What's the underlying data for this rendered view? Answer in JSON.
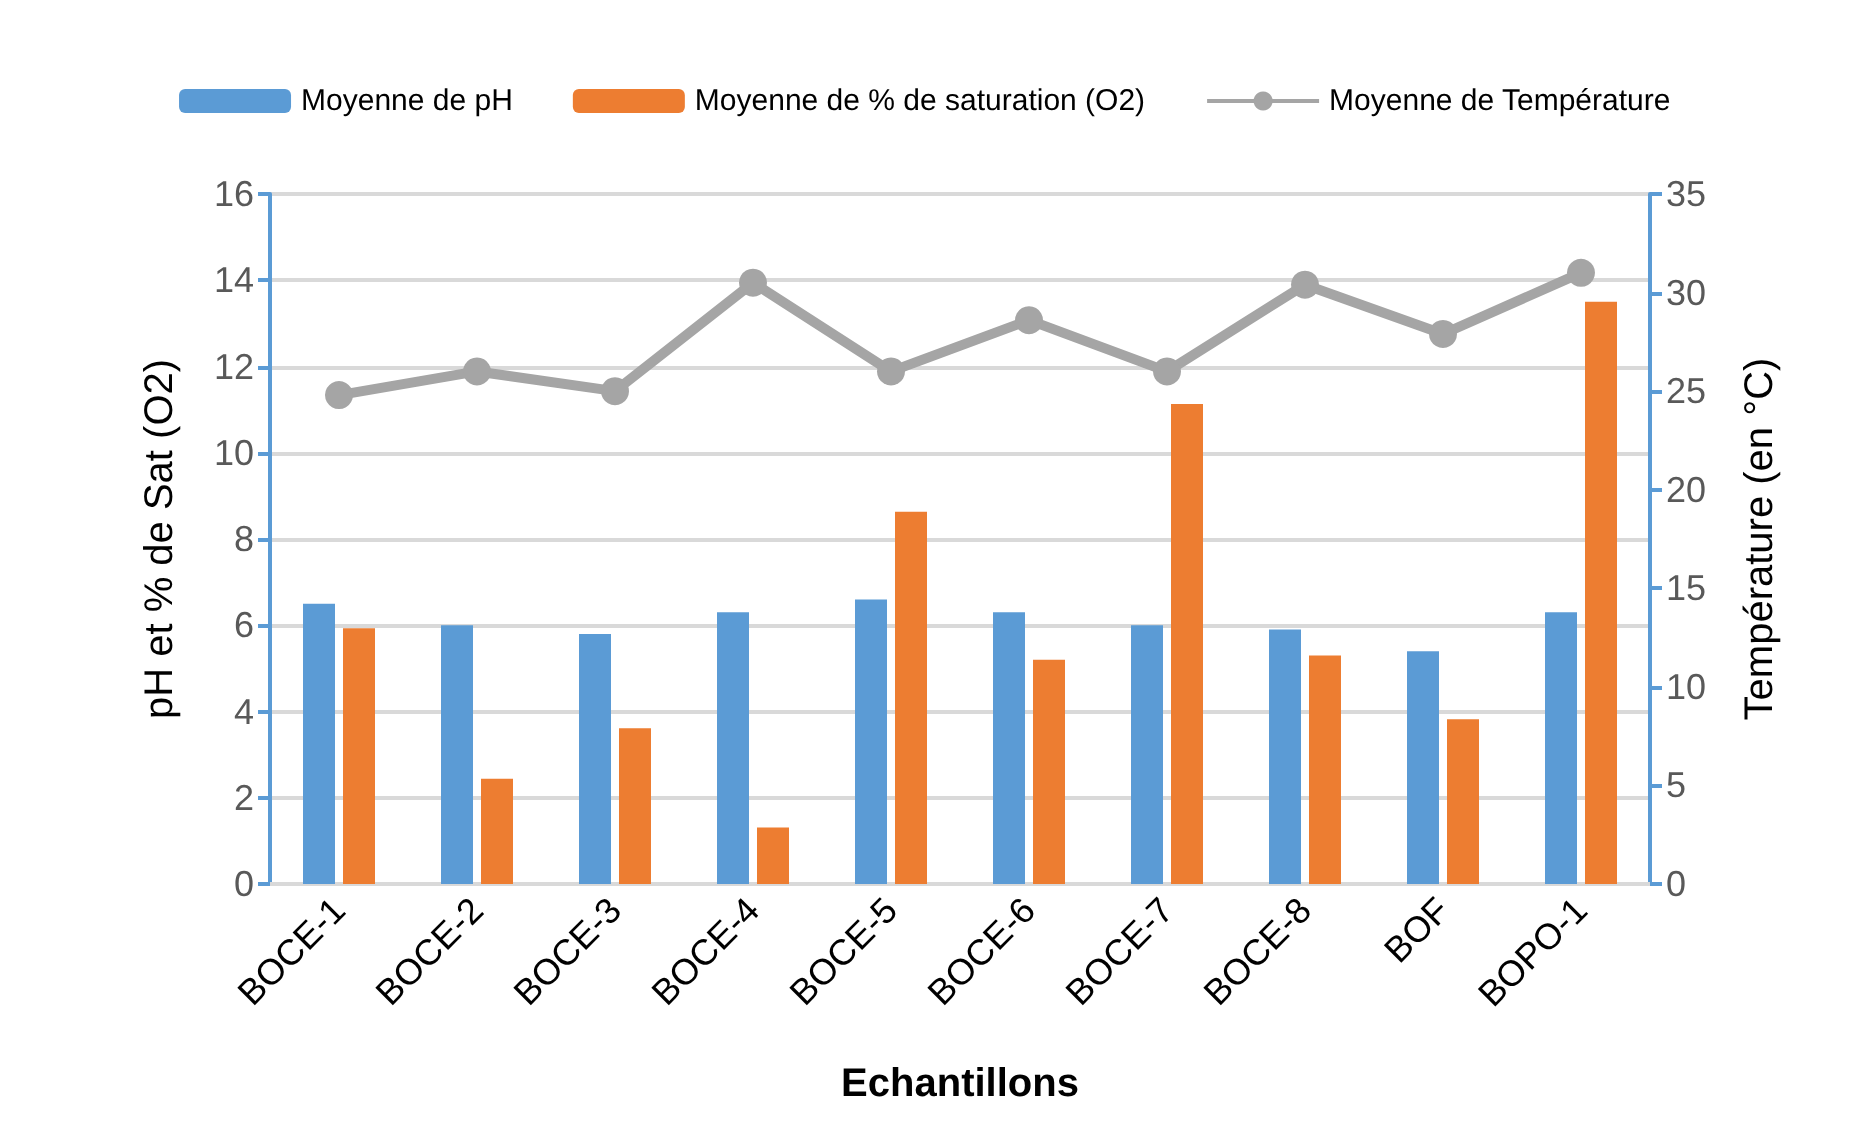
{
  "chart_data": {
    "type": "bar",
    "xlabel": "Echantillons",
    "ylabel": "pH et % de Sat (O2)",
    "y2label": "Température (en °C)",
    "categories": [
      "BOCE-1",
      "BOCE-2",
      "BOCE-3",
      "BOCE-4",
      "BOCE-5",
      "BOCE-6",
      "BOCE-7",
      "BOCE-8",
      "BOF",
      "BOPO-1"
    ],
    "series": [
      {
        "name": "Moyenne de pH",
        "color": "#5b9bd5",
        "values": [
          6.5,
          6.0,
          5.8,
          6.3,
          6.6,
          6.3,
          6.0,
          5.9,
          5.4,
          6.3
        ]
      },
      {
        "name": "Moyenne de % de saturation (O2)",
        "color": "#ed7d31",
        "values": [
          5.93,
          2.44,
          3.61,
          1.31,
          8.63,
          5.2,
          11.13,
          5.3,
          3.82,
          13.5
        ]
      },
      {
        "name": "Moyenne de Température",
        "type": "line",
        "axis": "y2",
        "color": "#a5a5a5",
        "marker": "circle",
        "values": [
          24.8,
          26.0,
          25.0,
          30.5,
          26.0,
          28.6,
          26.0,
          30.4,
          27.9,
          31.0
        ]
      }
    ],
    "ylim": [
      0,
      16
    ],
    "yticks": [
      0,
      2,
      4,
      6,
      8,
      10,
      12,
      14,
      16
    ],
    "y2lim": [
      0,
      35
    ],
    "y2ticks": [
      0,
      5,
      10,
      15,
      20,
      25,
      30,
      35
    ],
    "grid": "y",
    "legend": "top"
  }
}
